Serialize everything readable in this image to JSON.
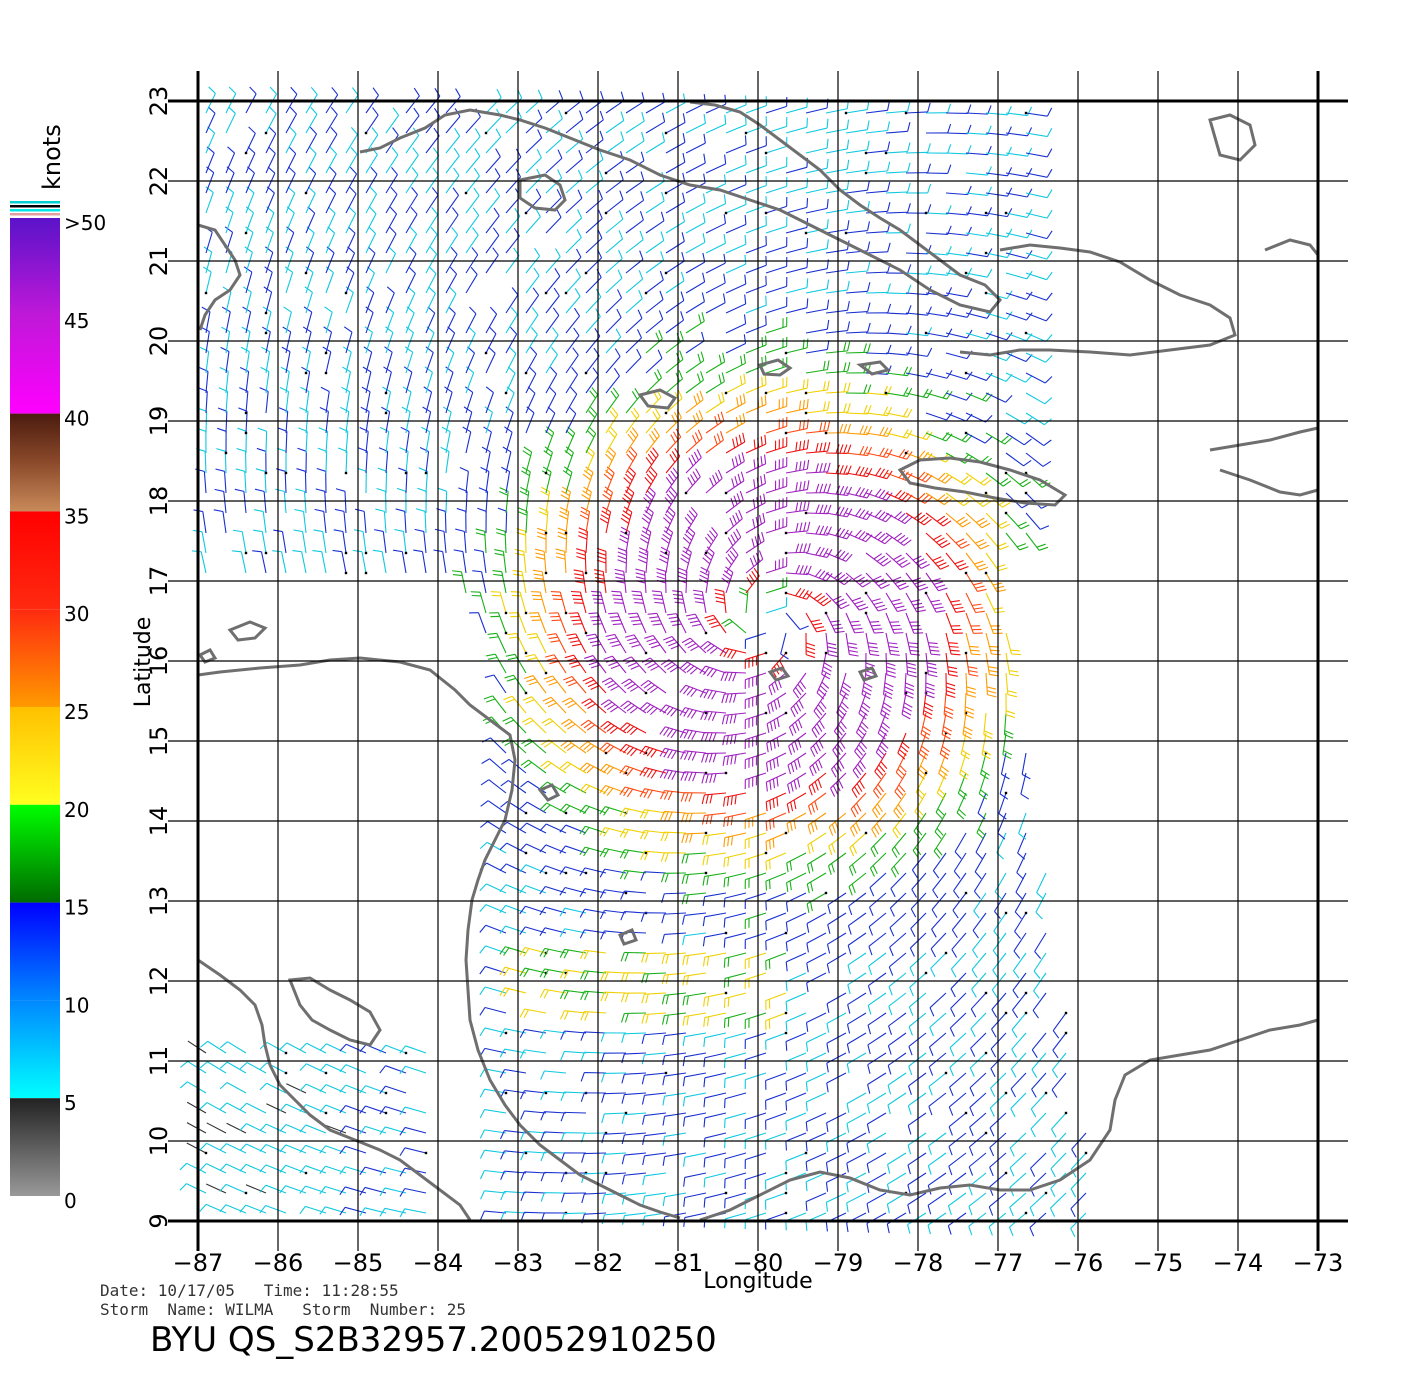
{
  "legend": {
    "unit_label": "knots",
    "ticks": [
      ">50",
      "45",
      "40",
      "35",
      "30",
      "25",
      "20",
      "15",
      "10",
      "5",
      "0"
    ],
    "bands": [
      {
        "from": 50,
        "to": 40,
        "colors": [
          "#5a13c9",
          "#c018d8",
          "#ff00ff"
        ]
      },
      {
        "from": 40,
        "to": 35,
        "colors": [
          "#4b1b0f",
          "#8b4a2a",
          "#c98a5a"
        ]
      },
      {
        "from": 35,
        "to": 30,
        "colors": [
          "#ff0000",
          "#ff2a10"
        ]
      },
      {
        "from": 30,
        "to": 25,
        "colors": [
          "#ff2a10",
          "#ff9a00"
        ]
      },
      {
        "from": 25,
        "to": 20,
        "colors": [
          "#ffc000",
          "#ffff20"
        ]
      },
      {
        "from": 20,
        "to": 15,
        "colors": [
          "#00ff00",
          "#006a00"
        ]
      },
      {
        "from": 15,
        "to": 10,
        "colors": [
          "#0000ff",
          "#0088ff"
        ]
      },
      {
        "from": 10,
        "to": 5,
        "colors": [
          "#0088ff",
          "#00ffff"
        ]
      },
      {
        "from": 5,
        "to": 0,
        "colors": [
          "#222222",
          "#999999"
        ]
      }
    ]
  },
  "axes": {
    "x_label": "Longitude",
    "y_label": "Latitude",
    "lon_ticks": [
      -87,
      -86,
      -85,
      -84,
      -83,
      -82,
      -81,
      -80,
      -79,
      -78,
      -77,
      -76,
      -75,
      -74,
      -73
    ],
    "lat_ticks": [
      9,
      10,
      11,
      12,
      13,
      14,
      15,
      16,
      17,
      18,
      19,
      20,
      21,
      22,
      23
    ],
    "lon_range": [
      -87,
      -73
    ],
    "lat_range": [
      9,
      23
    ]
  },
  "storm": {
    "name": "WILMA",
    "center_lon": -79.9,
    "center_lat": 16.5
  },
  "meta": {
    "line1": "Date: 10/17/05   Time: 11:28:55",
    "line2": "Storm  Name: WILMA   Storm  Number: 25",
    "product_id": "BYU  QS_S2B32957.20052910250"
  },
  "colors": {
    "coast": "#6f6f6f",
    "grid": "#000000"
  }
}
